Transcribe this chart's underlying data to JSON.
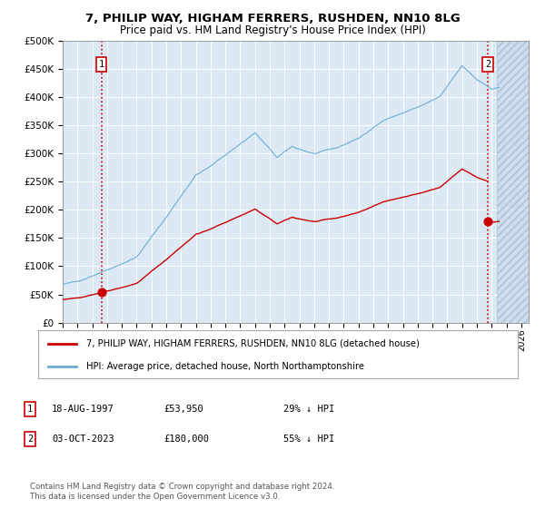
{
  "title_line1": "7, PHILIP WAY, HIGHAM FERRERS, RUSHDEN, NN10 8LG",
  "title_line2": "Price paid vs. HM Land Registry's House Price Index (HPI)",
  "plot_bg_color": "#dce9f5",
  "ylim": [
    0,
    500000
  ],
  "yticks": [
    0,
    50000,
    100000,
    150000,
    200000,
    250000,
    300000,
    350000,
    400000,
    450000,
    500000
  ],
  "hpi_color": "#6aaed6",
  "price_color": "#cc0000",
  "dashed_color": "#cc0000",
  "marker_color": "#cc0000",
  "sale1_year": 1997.625,
  "sale1_price": 53950,
  "sale2_year": 2023.75,
  "sale2_price": 180000,
  "legend_label1": "7, PHILIP WAY, HIGHAM FERRERS, RUSHDEN, NN10 8LG (detached house)",
  "legend_label2": "HPI: Average price, detached house, North Northamptonshire",
  "footer": "Contains HM Land Registry data © Crown copyright and database right 2024.\nThis data is licensed under the Open Government Licence v3.0.",
  "xlim_start": 1995.0,
  "xlim_end": 2026.5,
  "hpi_at_sale1": 74000,
  "hpi_at_sale2": 390000
}
